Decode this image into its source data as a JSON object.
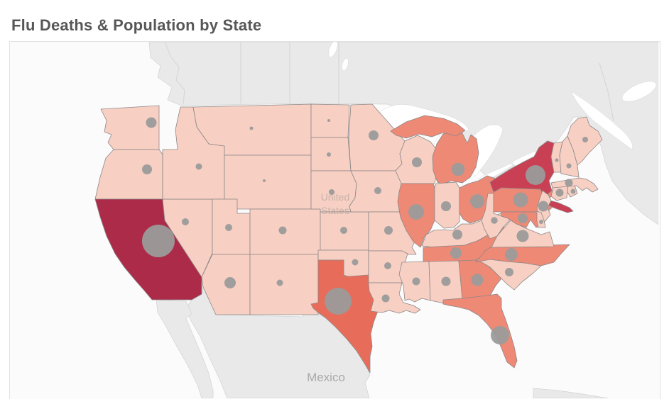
{
  "title": "Flu Deaths & Population by State",
  "map": {
    "background_labels": {
      "united_states": {
        "text": "United States",
        "lines": [
          "United",
          "States"
        ]
      },
      "mexico": {
        "text": "Mexico"
      }
    },
    "colors": {
      "ocean": "#fbfbfb",
      "neighbor_land": "#e9e9e9",
      "inland_water": "#ffffff",
      "state_border": "#8d8888",
      "bubble": "#9b9b9b",
      "panel_border": "#e2e2e2",
      "label_gray": "#9e9e9e"
    }
  },
  "chart_data": {
    "type": "choropleth-bubble-map",
    "title": "Flu Deaths & Population by State",
    "region": "United States (contiguous 48 states)",
    "color_encodes": "Flu deaths by state (darker red = more deaths)",
    "size_encodes": "Population by state (larger gray bubble = larger population)",
    "legend_visible": false,
    "color_levels": {
      "1": "#f7cfc3",
      "2": "#ee8976",
      "3": "#e86c5a",
      "4": "#c94054",
      "5": "#ac2b49"
    },
    "bubble_color": "#9b9b9b",
    "states": [
      {
        "abbr": "WA",
        "name": "Washington",
        "flu_level": 1,
        "bubble_radius_px": 7.5
      },
      {
        "abbr": "OR",
        "name": "Oregon",
        "flu_level": 1,
        "bubble_radius_px": 7
      },
      {
        "abbr": "CA",
        "name": "California",
        "flu_level": 5,
        "bubble_radius_px": 23
      },
      {
        "abbr": "NV",
        "name": "Nevada",
        "flu_level": 1,
        "bubble_radius_px": 5
      },
      {
        "abbr": "ID",
        "name": "Idaho",
        "flu_level": 1,
        "bubble_radius_px": 4.5
      },
      {
        "abbr": "MT",
        "name": "Montana",
        "flu_level": 1,
        "bubble_radius_px": 2.5
      },
      {
        "abbr": "WY",
        "name": "Wyoming",
        "flu_level": 1,
        "bubble_radius_px": 2
      },
      {
        "abbr": "UT",
        "name": "Utah",
        "flu_level": 1,
        "bubble_radius_px": 5
      },
      {
        "abbr": "CO",
        "name": "Colorado",
        "flu_level": 1,
        "bubble_radius_px": 5.5
      },
      {
        "abbr": "AZ",
        "name": "Arizona",
        "flu_level": 1,
        "bubble_radius_px": 8
      },
      {
        "abbr": "NM",
        "name": "New Mexico",
        "flu_level": 1,
        "bubble_radius_px": 4.5
      },
      {
        "abbr": "ND",
        "name": "North Dakota",
        "flu_level": 1,
        "bubble_radius_px": 2
      },
      {
        "abbr": "SD",
        "name": "South Dakota",
        "flu_level": 1,
        "bubble_radius_px": 3
      },
      {
        "abbr": "NE",
        "name": "Nebraska",
        "flu_level": 1,
        "bubble_radius_px": 4
      },
      {
        "abbr": "KS",
        "name": "Kansas",
        "flu_level": 1,
        "bubble_radius_px": 5
      },
      {
        "abbr": "OK",
        "name": "Oklahoma",
        "flu_level": 1,
        "bubble_radius_px": 4.5
      },
      {
        "abbr": "TX",
        "name": "Texas",
        "flu_level": 3,
        "bubble_radius_px": 19
      },
      {
        "abbr": "MN",
        "name": "Minnesota",
        "flu_level": 1,
        "bubble_radius_px": 7
      },
      {
        "abbr": "IA",
        "name": "Iowa",
        "flu_level": 1,
        "bubble_radius_px": 5
      },
      {
        "abbr": "MO",
        "name": "Missouri",
        "flu_level": 1,
        "bubble_radius_px": 6
      },
      {
        "abbr": "AR",
        "name": "Arkansas",
        "flu_level": 1,
        "bubble_radius_px": 5
      },
      {
        "abbr": "LA",
        "name": "Louisiana",
        "flu_level": 1,
        "bubble_radius_px": 5.5
      },
      {
        "abbr": "WI",
        "name": "Wisconsin",
        "flu_level": 1,
        "bubble_radius_px": 7
      },
      {
        "abbr": "IL",
        "name": "Illinois",
        "flu_level": 2,
        "bubble_radius_px": 11
      },
      {
        "abbr": "MI",
        "name": "Michigan",
        "flu_level": 2,
        "bubble_radius_px": 9.3
      },
      {
        "abbr": "IN",
        "name": "Indiana",
        "flu_level": 1,
        "bubble_radius_px": 7
      },
      {
        "abbr": "OH",
        "name": "Ohio",
        "flu_level": 2,
        "bubble_radius_px": 10
      },
      {
        "abbr": "KY",
        "name": "Kentucky",
        "flu_level": 1,
        "bubble_radius_px": 7
      },
      {
        "abbr": "TN",
        "name": "Tennessee",
        "flu_level": 2,
        "bubble_radius_px": 8
      },
      {
        "abbr": "MS",
        "name": "Mississippi",
        "flu_level": 1,
        "bubble_radius_px": 5.5
      },
      {
        "abbr": "AL",
        "name": "Alabama",
        "flu_level": 1,
        "bubble_radius_px": 6.5
      },
      {
        "abbr": "GA",
        "name": "Georgia",
        "flu_level": 2,
        "bubble_radius_px": 8.5
      },
      {
        "abbr": "FL",
        "name": "Florida",
        "flu_level": 2,
        "bubble_radius_px": 13
      },
      {
        "abbr": "SC",
        "name": "South Carolina",
        "flu_level": 1,
        "bubble_radius_px": 6
      },
      {
        "abbr": "NC",
        "name": "North Carolina",
        "flu_level": 2,
        "bubble_radius_px": 9
      },
      {
        "abbr": "VA",
        "name": "Virginia",
        "flu_level": 1,
        "bubble_radius_px": 8.5
      },
      {
        "abbr": "WV",
        "name": "West Virginia",
        "flu_level": 1,
        "bubble_radius_px": 4.7
      },
      {
        "abbr": "PA",
        "name": "Pennsylvania",
        "flu_level": 2,
        "bubble_radius_px": 10.5
      },
      {
        "abbr": "NY",
        "name": "New York",
        "flu_level": 4,
        "bubble_rad_note": "largest in northeast",
        "bubble_radius_px": 14
      },
      {
        "abbr": "NJ",
        "name": "New Jersey",
        "flu_level": 1,
        "bubble_radius_px": 7.5
      },
      {
        "abbr": "MD",
        "name": "Maryland",
        "flu_level": 2,
        "bubble_radius_px": 7
      },
      {
        "abbr": "DE",
        "name": "Delaware",
        "flu_level": 1,
        "bubble_radius_px": 3
      },
      {
        "abbr": "CT",
        "name": "Connecticut",
        "flu_level": 1,
        "bubble_radius_px": 5.5
      },
      {
        "abbr": "RI",
        "name": "Rhode Island",
        "flu_level": 1,
        "bubble_radius_px": 3.5
      },
      {
        "abbr": "MA",
        "name": "Massachusetts",
        "flu_level": 1,
        "bubble_radius_px": 5.5
      },
      {
        "abbr": "VT",
        "name": "Vermont",
        "flu_level": 1,
        "bubble_radius_px": 2.5
      },
      {
        "abbr": "NH",
        "name": "New Hampshire",
        "flu_level": 1,
        "bubble_radius_px": 3.5
      },
      {
        "abbr": "ME",
        "name": "Maine",
        "flu_level": 1,
        "bubble_radius_px": 4
      }
    ]
  }
}
